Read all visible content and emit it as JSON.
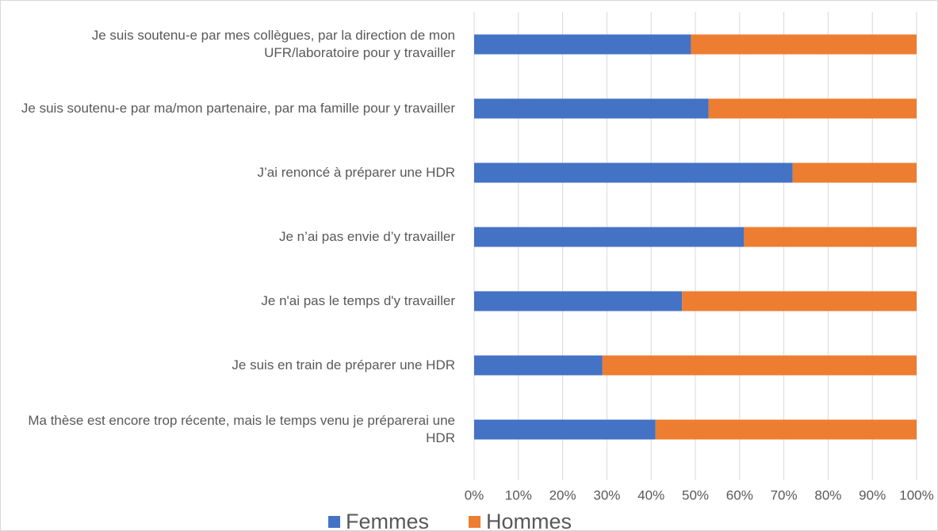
{
  "chart_data": {
    "type": "stacked_barh",
    "categories": [
      "Je suis soutenu-e par mes collègues, par la direction de mon UFR/laboratoire pour y travailler",
      "Je suis soutenu-e par ma/mon partenaire, par ma famille pour y travailler",
      "J’ai renoncé à préparer une HDR",
      "Je n’ai pas envie d’y travailler",
      "Je n'ai pas le temps d'y travailler",
      "Je suis en train de préparer une HDR",
      "Ma thèse est encore trop récente, mais le temps venu je préparerai une HDR"
    ],
    "series": [
      {
        "name": "Femmes",
        "color": "#4472c4",
        "values": [
          49,
          53,
          72,
          61,
          47,
          29,
          41
        ]
      },
      {
        "name": "Hommes",
        "color": "#ed7d31",
        "values": [
          51,
          47,
          28,
          39,
          53,
          71,
          59
        ]
      }
    ],
    "xlim": [
      0,
      100
    ],
    "xticks": [
      {
        "value": 0,
        "label": "0%"
      },
      {
        "value": 10,
        "label": "10%"
      },
      {
        "value": 20,
        "label": "20%"
      },
      {
        "value": 30,
        "label": "30%"
      },
      {
        "value": 40,
        "label": "40%"
      },
      {
        "value": 50,
        "label": "50%"
      },
      {
        "value": 60,
        "label": "60%"
      },
      {
        "value": 70,
        "label": "70%"
      },
      {
        "value": 80,
        "label": "80%"
      },
      {
        "value": 90,
        "label": "90%"
      },
      {
        "value": 100,
        "label": "100%"
      }
    ],
    "grid": true,
    "legend": "bottom"
  }
}
